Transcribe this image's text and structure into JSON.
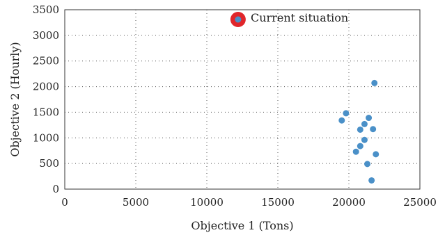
{
  "chart_data": {
    "type": "scatter",
    "title": "",
    "xlabel": "Objective 1 (Tons)",
    "ylabel": "Objective 2 (Hourly)",
    "xlim": [
      0,
      25000
    ],
    "ylim": [
      0,
      3500
    ],
    "x_ticks": [
      0,
      5000,
      10000,
      15000,
      20000,
      25000
    ],
    "y_ticks": [
      0,
      500,
      1000,
      1500,
      2000,
      2500,
      3000,
      3500
    ],
    "x_tick_labels": [
      "0",
      "5000",
      "10000",
      "15000",
      "20000",
      "25000"
    ],
    "y_tick_labels": [
      "0",
      "500",
      "1000",
      "1500",
      "2000",
      "2500",
      "3000",
      "3500"
    ],
    "grid": true,
    "legend": {
      "position": "top-center",
      "entries": [
        "Current situation"
      ]
    },
    "series": [
      {
        "name": "",
        "color": "#4a90c8",
        "points": [
          {
            "x": 21800,
            "y": 2070
          },
          {
            "x": 19800,
            "y": 1480
          },
          {
            "x": 19500,
            "y": 1340
          },
          {
            "x": 21400,
            "y": 1390
          },
          {
            "x": 21100,
            "y": 1270
          },
          {
            "x": 20800,
            "y": 1160
          },
          {
            "x": 21700,
            "y": 1170
          },
          {
            "x": 21100,
            "y": 960
          },
          {
            "x": 20800,
            "y": 840
          },
          {
            "x": 20500,
            "y": 730
          },
          {
            "x": 21900,
            "y": 680
          },
          {
            "x": 21300,
            "y": 490
          },
          {
            "x": 21600,
            "y": 170
          }
        ]
      },
      {
        "name": "Current situation",
        "color": "#4a90c8",
        "ring_color": "#e0262b",
        "points": [
          {
            "x": 12200,
            "y": 3310
          }
        ]
      }
    ]
  }
}
